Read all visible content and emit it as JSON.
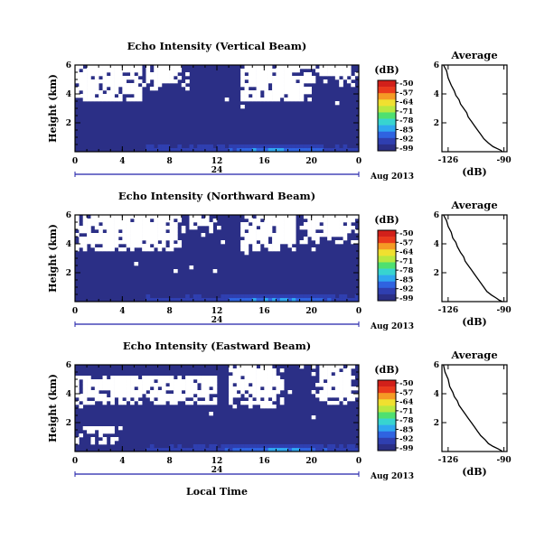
{
  "colors": {
    "background_fill": "#2b2f86",
    "colormap": [
      "#2b2f86",
      "#2f3fb0",
      "#2f63e0",
      "#2fa7f0",
      "#37d4d0",
      "#4fe070",
      "#b8e840",
      "#f0e030",
      "#f59a25",
      "#ea3a1c",
      "#d2201a"
    ]
  },
  "date_label": "Aug 2013",
  "time_axis_mid_label": "24",
  "xlabel": "Local Time",
  "colorbar": {
    "unit": "(dB)",
    "ticks": [
      "-50",
      "-57",
      "-64",
      "-71",
      "-78",
      "-85",
      "-92",
      "-99"
    ]
  },
  "chart_data": [
    {
      "type": "heatmap",
      "title": "Echo Intensity (Vertical Beam)",
      "ylabel": "Height (km)",
      "x_ticks": [
        "0",
        "4",
        "8",
        "12",
        "16",
        "20",
        "0"
      ],
      "y_ticks": [
        "6",
        "4",
        "2"
      ],
      "xlim": [
        0,
        24
      ],
      "ylim": [
        0,
        6
      ],
      "value_range_dB": [
        -99,
        -50
      ],
      "seed": 11,
      "summary": "mostly low intensity (~ -99 dB); enhanced echoes (-92 to -78 dB) in lowest ~0.6 km; missing data (white) mainly above 3.5 km between 0-6 LT and 14-20 LT"
    },
    {
      "type": "line",
      "title": "Average",
      "xlabel": "(dB)",
      "x_ticks": [
        "-126",
        "-90"
      ],
      "y_ticks": [
        "6",
        "4",
        "2"
      ],
      "xlim": [
        -130,
        -88
      ],
      "ylim": [
        0,
        6
      ],
      "x": [
        -129,
        -127,
        -126,
        -124,
        -122,
        -121,
        -119,
        -118,
        -116,
        -114,
        -113,
        -111,
        -109,
        -107,
        -105,
        -103,
        -100,
        -97,
        -94,
        -92,
        -91
      ],
      "y": [
        6.0,
        5.6,
        5.1,
        4.6,
        4.2,
        3.9,
        3.6,
        3.3,
        3.0,
        2.7,
        2.4,
        2.1,
        1.8,
        1.5,
        1.2,
        0.9,
        0.6,
        0.35,
        0.2,
        0.1,
        0.0
      ]
    },
    {
      "type": "heatmap",
      "title": "Echo Intensity (Northward Beam)",
      "ylabel": "Height (km)",
      "x_ticks": [
        "0",
        "4",
        "8",
        "12",
        "16",
        "20",
        "0"
      ],
      "y_ticks": [
        "6",
        "4",
        "2"
      ],
      "xlim": [
        0,
        24
      ],
      "ylim": [
        0,
        6
      ],
      "value_range_dB": [
        -99,
        -50
      ],
      "seed": 23,
      "summary": "mostly low intensity; enhanced echoes near ground; missing data above ~3.5 km between 0-9 LT and 14-18 LT"
    },
    {
      "type": "line",
      "title": "Average",
      "xlabel": "(dB)",
      "x_ticks": [
        "-126",
        "-90"
      ],
      "y_ticks": [
        "6",
        "4",
        "2"
      ],
      "xlim": [
        -130,
        -88
      ],
      "ylim": [
        0,
        6
      ],
      "x": [
        -129,
        -127,
        -126,
        -124,
        -123,
        -121,
        -120,
        -118,
        -116,
        -115,
        -113,
        -111,
        -109,
        -107,
        -105,
        -103,
        -101,
        -98,
        -95,
        -93,
        -91
      ],
      "y": [
        6.0,
        5.6,
        5.2,
        4.8,
        4.4,
        4.1,
        3.8,
        3.4,
        3.1,
        2.8,
        2.5,
        2.2,
        1.9,
        1.6,
        1.3,
        1.0,
        0.7,
        0.45,
        0.25,
        0.1,
        0.0
      ]
    },
    {
      "type": "heatmap",
      "title": "Echo Intensity (Eastward Beam)",
      "ylabel": "Height (km)",
      "x_ticks": [
        "0",
        "4",
        "8",
        "12",
        "16",
        "20",
        "0"
      ],
      "y_ticks": [
        "6",
        "4",
        "2"
      ],
      "xlim": [
        0,
        24
      ],
      "ylim": [
        0,
        6
      ],
      "value_range_dB": [
        -99,
        -50
      ],
      "seed": 37,
      "summary": "mostly low intensity; enhanced echoes near ground; missing data above ~3 km between 0-12 LT and 13-17 LT"
    },
    {
      "type": "line",
      "title": "Average",
      "xlabel": "(dB)",
      "x_ticks": [
        "-126",
        "-90"
      ],
      "y_ticks": [
        "6",
        "4",
        "2"
      ],
      "xlim": [
        -130,
        -88
      ],
      "ylim": [
        0,
        6
      ],
      "x": [
        -129,
        -128,
        -126,
        -125,
        -123,
        -122,
        -120,
        -119,
        -117,
        -115,
        -113,
        -111,
        -109,
        -107,
        -105,
        -102,
        -100,
        -97,
        -94,
        -92,
        -91
      ],
      "y": [
        6.0,
        5.5,
        5.0,
        4.5,
        4.1,
        3.8,
        3.5,
        3.2,
        2.9,
        2.6,
        2.3,
        2.0,
        1.7,
        1.4,
        1.1,
        0.8,
        0.55,
        0.35,
        0.2,
        0.08,
        0.0
      ]
    }
  ]
}
